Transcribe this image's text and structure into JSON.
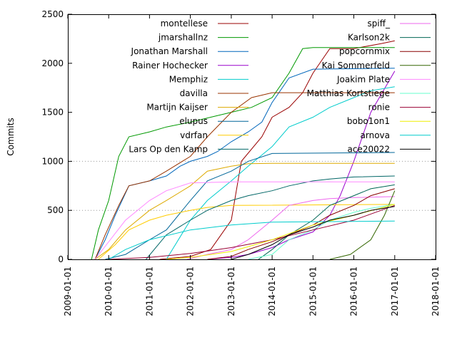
{
  "chart_data": {
    "type": "line",
    "title": "",
    "xlabel": "",
    "ylabel": "Commits",
    "xlim": [
      "2009-01-01",
      "2018-01-01"
    ],
    "ylim": [
      0,
      2500
    ],
    "x_ticks": [
      "2009-01-01",
      "2010-01-01",
      "2011-01-01",
      "2012-01-01",
      "2013-01-01",
      "2014-01-01",
      "2015-01-01",
      "2016-01-01",
      "2017-01-01",
      "2018-01-01"
    ],
    "y_ticks": [
      0,
      500,
      1000,
      1500,
      2000,
      2500
    ],
    "grid": "horizontal dotted at 500 and 1000",
    "legend": "inside, two columns, top",
    "series": [
      {
        "name": "montellese",
        "color": "#990000",
        "x": [
          "2011-04-01",
          "2012-01-01",
          "2012-07-01",
          "2013-01-01",
          "2013-04-01",
          "2013-10-01",
          "2014-01-01",
          "2014-06-01",
          "2014-10-01",
          "2015-01-01",
          "2015-06-01",
          "2016-01-01",
          "2016-09-01",
          "2017-01-01"
        ],
        "y": [
          0,
          30,
          100,
          400,
          1000,
          1250,
          1450,
          1550,
          1700,
          1900,
          2150,
          2150,
          2200,
          2230
        ]
      },
      {
        "name": "jmarshallnz",
        "color": "#009900",
        "x": [
          "2009-08-01",
          "2009-10-01",
          "2010-01-01",
          "2010-04-01",
          "2010-07-01",
          "2011-01-01",
          "2011-06-01",
          "2012-01-01",
          "2012-07-01",
          "2013-01-01",
          "2013-07-01",
          "2014-01-01",
          "2014-06-01",
          "2014-10-01",
          "2015-01-01",
          "2017-01-01"
        ],
        "y": [
          0,
          300,
          600,
          1050,
          1250,
          1300,
          1350,
          1400,
          1450,
          1500,
          1550,
          1650,
          1900,
          2150,
          2160,
          2160
        ]
      },
      {
        "name": "Jonathan Marshall",
        "color": "#0066bb",
        "x": [
          "2009-09-01",
          "2009-12-01",
          "2010-03-01",
          "2010-07-01",
          "2011-01-01",
          "2011-06-01",
          "2011-10-01",
          "2012-01-01",
          "2012-06-01",
          "2012-09-01",
          "2013-01-01",
          "2013-06-01",
          "2013-10-01",
          "2014-01-01",
          "2014-06-01",
          "2015-01-01",
          "2017-01-01"
        ],
        "y": [
          0,
          200,
          450,
          750,
          800,
          850,
          950,
          1000,
          1050,
          1100,
          1200,
          1300,
          1400,
          1600,
          1850,
          1940,
          1950
        ]
      },
      {
        "name": "Rainer Hochecker",
        "color": "#9900cc",
        "x": [
          "2012-06-01",
          "2013-01-01",
          "2013-06-01",
          "2014-01-01",
          "2014-06-01",
          "2015-01-01",
          "2015-06-01",
          "2015-09-01",
          "2016-01-01",
          "2016-06-01",
          "2017-01-01"
        ],
        "y": [
          0,
          20,
          50,
          120,
          200,
          280,
          450,
          650,
          1000,
          1500,
          1920
        ]
      },
      {
        "name": "Memphiz",
        "color": "#00cccc",
        "x": [
          "2011-06-01",
          "2012-01-01",
          "2012-06-01",
          "2013-01-01",
          "2013-06-01",
          "2014-01-01",
          "2014-06-01",
          "2015-01-01",
          "2015-06-01",
          "2016-01-01",
          "2016-06-01",
          "2017-01-01"
        ],
        "y": [
          0,
          400,
          600,
          800,
          950,
          1150,
          1350,
          1450,
          1550,
          1650,
          1720,
          1760
        ]
      },
      {
        "name": "davilla",
        "color": "#993300",
        "x": [
          "2009-09-01",
          "2009-12-01",
          "2010-04-01",
          "2010-07-01",
          "2011-01-01",
          "2011-06-01",
          "2012-01-01",
          "2012-06-01",
          "2013-01-01",
          "2013-07-01",
          "2014-01-01",
          "2017-01-01"
        ],
        "y": [
          0,
          250,
          550,
          750,
          800,
          900,
          1050,
          1250,
          1500,
          1650,
          1700,
          1700
        ]
      },
      {
        "name": "Martijn Kaijser",
        "color": "#ddaa00",
        "x": [
          "2009-09-01",
          "2010-01-01",
          "2010-06-01",
          "2011-01-01",
          "2011-06-01",
          "2012-01-01",
          "2012-06-01",
          "2013-01-01",
          "2013-06-01",
          "2014-01-01",
          "2017-01-01"
        ],
        "y": [
          0,
          100,
          300,
          500,
          600,
          750,
          900,
          950,
          975,
          980,
          980
        ]
      },
      {
        "name": "elupus",
        "color": "#006699",
        "x": [
          "2009-12-01",
          "2010-06-01",
          "2011-01-01",
          "2011-06-01",
          "2012-01-01",
          "2012-06-01",
          "2013-01-01",
          "2013-06-01",
          "2014-01-01",
          "2017-01-01"
        ],
        "y": [
          0,
          50,
          200,
          300,
          600,
          800,
          900,
          1000,
          1080,
          1090
        ]
      },
      {
        "name": "vdrfan",
        "color": "#ffcc00",
        "x": [
          "2009-10-01",
          "2010-03-01",
          "2010-07-01",
          "2011-01-01",
          "2011-06-01",
          "2012-01-01",
          "2012-06-01",
          "2013-01-01",
          "2017-01-01"
        ],
        "y": [
          0,
          150,
          300,
          400,
          450,
          500,
          530,
          550,
          560
        ]
      },
      {
        "name": "Lars Op den Kamp",
        "color": "#006666",
        "x": [
          "2010-12-01",
          "2011-06-01",
          "2012-01-01",
          "2012-06-01",
          "2013-01-01",
          "2013-06-01",
          "2014-01-01",
          "2014-06-01",
          "2015-01-01",
          "2015-06-01",
          "2016-01-01",
          "2017-01-01"
        ],
        "y": [
          0,
          250,
          400,
          500,
          600,
          650,
          700,
          750,
          800,
          820,
          840,
          850
        ]
      },
      {
        "name": "spiff_",
        "color": "#ee66ee",
        "x": [
          "2011-12-01",
          "2012-06-01",
          "2013-01-01",
          "2013-06-01",
          "2014-01-01",
          "2014-06-01",
          "2015-01-01",
          "2015-06-01",
          "2016-01-01",
          "2017-01-01"
        ],
        "y": [
          0,
          50,
          100,
          200,
          400,
          550,
          600,
          620,
          630,
          640
        ]
      },
      {
        "name": "Karlson2k",
        "color": "#006655",
        "x": [
          "2013-09-01",
          "2014-01-01",
          "2014-06-01",
          "2015-01-01",
          "2015-06-01",
          "2016-01-01",
          "2016-06-01",
          "2017-01-01"
        ],
        "y": [
          0,
          100,
          250,
          400,
          550,
          650,
          720,
          760
        ]
      },
      {
        "name": "popcornmix",
        "color": "#880000",
        "x": [
          "2012-06-01",
          "2013-01-01",
          "2013-06-01",
          "2014-01-01",
          "2014-06-01",
          "2015-01-01",
          "2015-06-01",
          "2016-01-01",
          "2016-06-01",
          "2017-01-01"
        ],
        "y": [
          0,
          30,
          100,
          180,
          250,
          350,
          450,
          550,
          650,
          720
        ]
      },
      {
        "name": "Kai Sommerfeld",
        "color": "#336600",
        "x": [
          "2015-06-01",
          "2015-12-01",
          "2016-06-01",
          "2016-10-01",
          "2017-01-01"
        ],
        "y": [
          0,
          50,
          200,
          450,
          700
        ]
      },
      {
        "name": "Joakim Plate",
        "color": "#ff88ff",
        "x": [
          "2009-09-01",
          "2010-06-01",
          "2011-01-01",
          "2011-06-01",
          "2012-01-01",
          "2013-01-01",
          "2014-01-01",
          "2015-01-01",
          "2016-01-01",
          "2017-01-01"
        ],
        "y": [
          0,
          400,
          600,
          700,
          780,
          790,
          790,
          790,
          790,
          790
        ]
      },
      {
        "name": "Matthias Kortstiege",
        "color": "#66ffcc",
        "x": [
          "2013-06-01",
          "2014-01-01",
          "2014-06-01",
          "2015-01-01",
          "2015-06-01",
          "2016-01-01",
          "2016-06-01",
          "2017-01-01"
        ],
        "y": [
          0,
          50,
          200,
          300,
          400,
          480,
          520,
          560
        ]
      },
      {
        "name": "ronie",
        "color": "#990033",
        "x": [
          "2010-01-01",
          "2011-01-01",
          "2012-01-01",
          "2013-01-01",
          "2014-01-01",
          "2015-01-01",
          "2016-01-01",
          "2017-01-01"
        ],
        "y": [
          0,
          20,
          60,
          120,
          200,
          300,
          400,
          550
        ]
      },
      {
        "name": "bobo1on1",
        "color": "#eeee00",
        "x": [
          "2011-06-01",
          "2012-01-01",
          "2013-01-01",
          "2014-01-01",
          "2015-01-01",
          "2016-01-01",
          "2017-01-01"
        ],
        "y": [
          0,
          20,
          80,
          200,
          350,
          450,
          560
        ]
      },
      {
        "name": "arnova",
        "color": "#00cccc",
        "x": [
          "2010-01-01",
          "2010-06-01",
          "2011-01-01",
          "2012-01-01",
          "2013-01-01",
          "2014-01-01",
          "2017-01-01"
        ],
        "y": [
          0,
          100,
          200,
          300,
          350,
          380,
          390
        ]
      },
      {
        "name": "ace20022",
        "color": "#000000",
        "x": [
          "2013-01-01",
          "2013-06-01",
          "2014-01-01",
          "2014-06-01",
          "2015-01-01",
          "2015-06-01",
          "2016-01-01",
          "2016-06-01",
          "2017-01-01"
        ],
        "y": [
          0,
          50,
          150,
          250,
          330,
          400,
          450,
          500,
          540
        ]
      }
    ]
  }
}
